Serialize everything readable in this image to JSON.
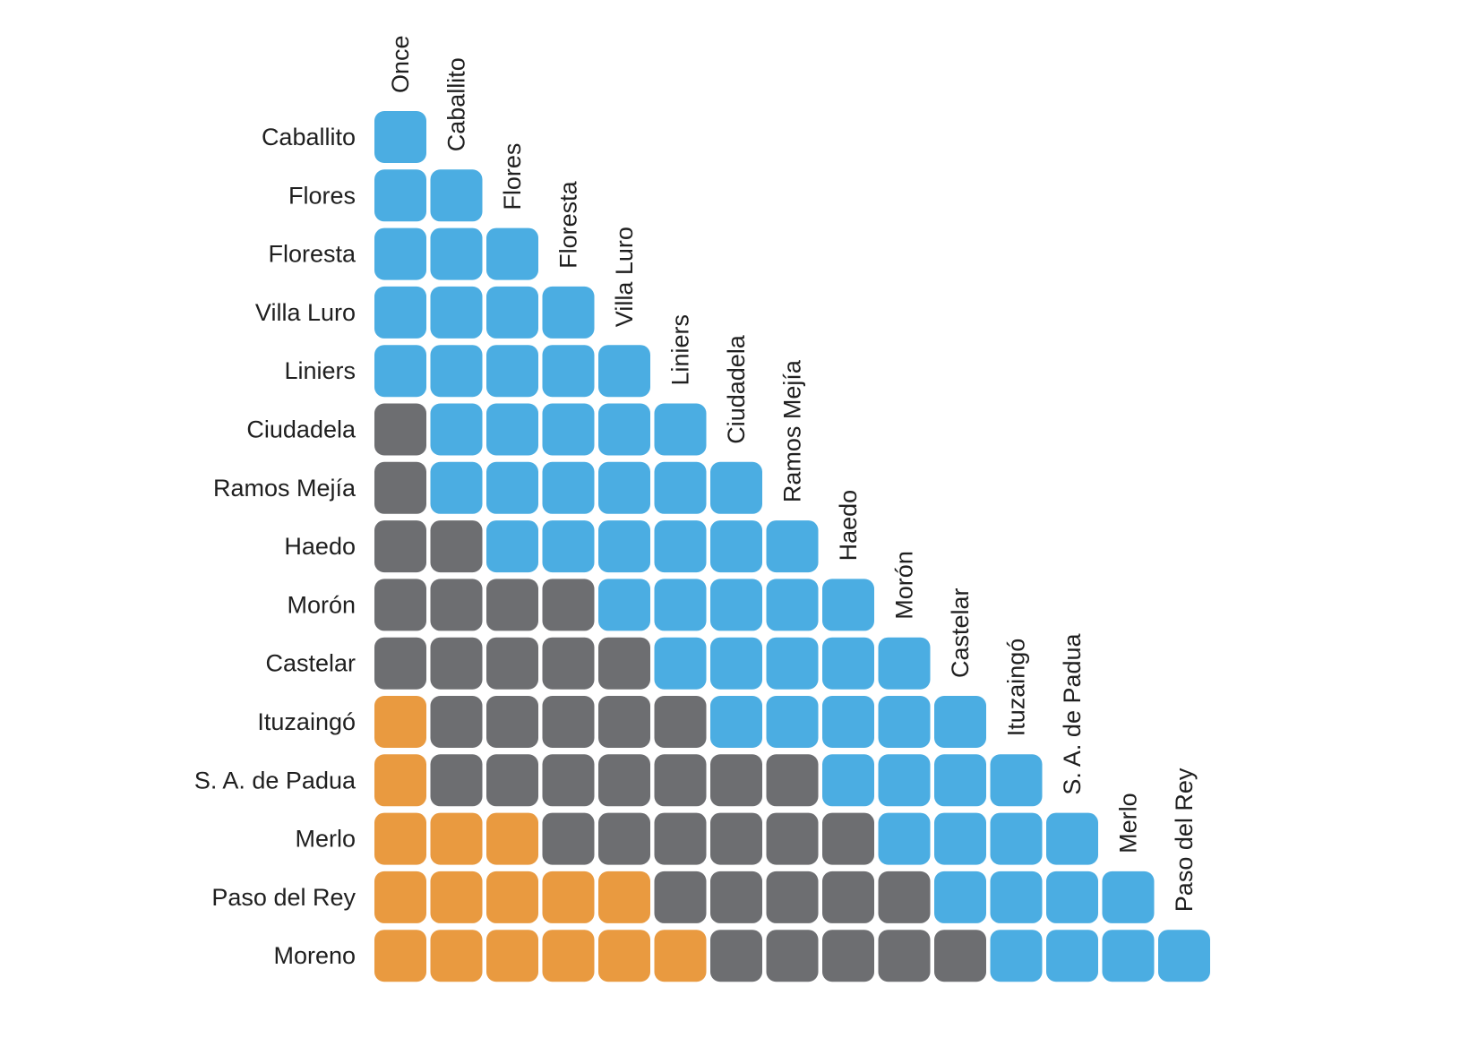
{
  "chart_data": {
    "type": "heatmap",
    "title": "",
    "columns": [
      "Once",
      "Caballito",
      "Flores",
      "Floresta",
      "Villa Luro",
      "Liniers",
      "Ciudadela",
      "Ramos Mejía",
      "Haedo",
      "Morón",
      "Castelar",
      "Ituzaingó",
      "S. A. de Padua",
      "Merlo",
      "Paso del Rey"
    ],
    "rows": [
      "Caballito",
      "Flores",
      "Floresta",
      "Villa Luro",
      "Liniers",
      "Ciudadela",
      "Ramos Mejía",
      "Haedo",
      "Morón",
      "Castelar",
      "Ituzaingó",
      "S. A. de Padua",
      "Merlo",
      "Paso del Rey",
      "Moreno"
    ],
    "categories": {
      "B": "#4BADE2",
      "G": "#6D6E71",
      "O": "#E99A40"
    },
    "values": [
      [
        "B"
      ],
      [
        "B",
        "B"
      ],
      [
        "B",
        "B",
        "B"
      ],
      [
        "B",
        "B",
        "B",
        "B"
      ],
      [
        "B",
        "B",
        "B",
        "B",
        "B"
      ],
      [
        "G",
        "B",
        "B",
        "B",
        "B",
        "B"
      ],
      [
        "G",
        "B",
        "B",
        "B",
        "B",
        "B",
        "B"
      ],
      [
        "G",
        "G",
        "B",
        "B",
        "B",
        "B",
        "B",
        "B"
      ],
      [
        "G",
        "G",
        "G",
        "G",
        "B",
        "B",
        "B",
        "B",
        "B"
      ],
      [
        "G",
        "G",
        "G",
        "G",
        "G",
        "B",
        "B",
        "B",
        "B",
        "B"
      ],
      [
        "O",
        "G",
        "G",
        "G",
        "G",
        "G",
        "B",
        "B",
        "B",
        "B",
        "B"
      ],
      [
        "O",
        "G",
        "G",
        "G",
        "G",
        "G",
        "G",
        "G",
        "B",
        "B",
        "B",
        "B"
      ],
      [
        "O",
        "O",
        "O",
        "G",
        "G",
        "G",
        "G",
        "G",
        "G",
        "B",
        "B",
        "B",
        "B"
      ],
      [
        "O",
        "O",
        "O",
        "O",
        "O",
        "G",
        "G",
        "G",
        "G",
        "G",
        "B",
        "B",
        "B",
        "B"
      ],
      [
        "O",
        "O",
        "O",
        "O",
        "O",
        "O",
        "G",
        "G",
        "G",
        "G",
        "G",
        "B",
        "B",
        "B",
        "B"
      ]
    ]
  }
}
